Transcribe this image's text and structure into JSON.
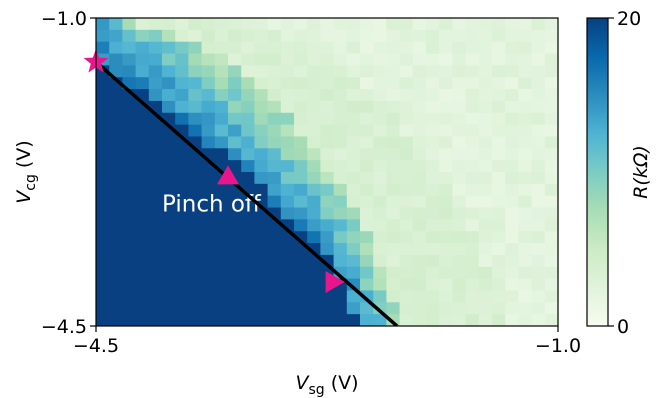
{
  "chart_data": {
    "type": "heatmap",
    "title": "",
    "x_axis": {
      "label_main": "V",
      "label_sub": "sg",
      "label_unit": " (V)",
      "range": [
        -4.5,
        -1.0
      ],
      "ticks": [
        {
          "value": -4.5,
          "label": "−4.5"
        },
        {
          "value": -1.0,
          "label": "−1.0"
        }
      ]
    },
    "y_axis": {
      "label_main": "V",
      "label_sub": "cg",
      "label_unit": " (V)",
      "range": [
        -4.5,
        -1.0
      ],
      "ticks": [
        {
          "value": -1.0,
          "label": "−1.0"
        },
        {
          "value": -4.5,
          "label": "−4.5"
        }
      ]
    },
    "colorbar": {
      "label": "R(kΩ)",
      "range": [
        0,
        20
      ],
      "ticks": [
        {
          "value": 20,
          "label": "20"
        },
        {
          "value": 0,
          "label": "0"
        }
      ],
      "colormap": "GnBu"
    },
    "grid": {
      "nx": 35,
      "ny": 26
    },
    "pinch_off_boundary": [
      [
        -4.5,
        -1.5
      ],
      [
        -4.0,
        -2.0
      ],
      [
        -3.5,
        -2.6
      ],
      [
        -3.0,
        -3.3
      ],
      [
        -2.7,
        -3.8
      ],
      [
        -2.6,
        -4.2
      ],
      [
        -2.5,
        -4.5
      ]
    ],
    "transition_band": [
      [
        -4.3,
        -1.0
      ],
      [
        -3.6,
        -1.4
      ],
      [
        -3.0,
        -2.2
      ],
      [
        -2.5,
        -3.2
      ],
      [
        -2.2,
        -4.5
      ]
    ],
    "annotations": [
      {
        "text": "Pinch off",
        "x": -4.0,
        "y": -3.2
      }
    ],
    "fit_line": {
      "x1": -4.5,
      "y1": -1.5,
      "x2": -2.22,
      "y2": -4.5,
      "color": "#000000"
    },
    "markers": [
      {
        "shape": "star",
        "x": -4.5,
        "y": -1.5,
        "color": "#e8168c"
      },
      {
        "shape": "triangle-up",
        "x": -3.5,
        "y": -2.8,
        "color": "#e8168c"
      },
      {
        "shape": "triangle-right",
        "x": -2.7,
        "y": -4.0,
        "color": "#e8168c"
      }
    ]
  }
}
